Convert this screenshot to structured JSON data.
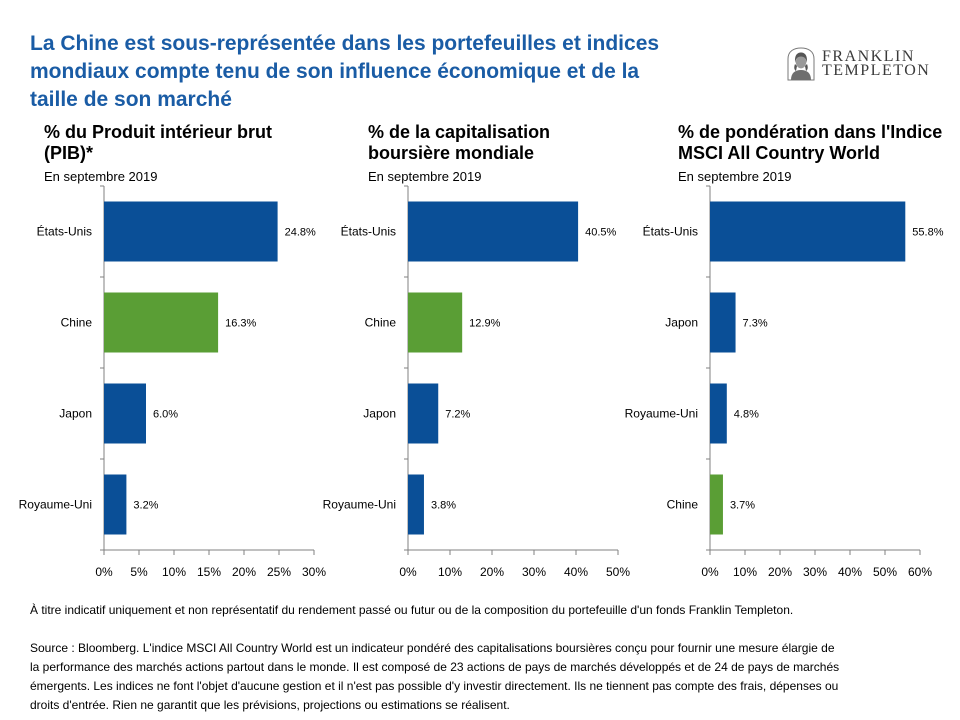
{
  "header": {
    "title_lines": [
      "La Chine est sous-représentée dans les portefeuilles et indices",
      "mondiaux compte tenu de son influence économique et de la",
      "taille de son marché"
    ]
  },
  "logo": {
    "line1": "FRANKLIN",
    "line2": "TEMPLETON",
    "icon": "franklin-portrait-icon"
  },
  "colors": {
    "title": "#1a5ca5",
    "bar": "#0a4f97",
    "highlight_bar": "#5a9e35",
    "axis": "#808080",
    "logo_text": "#3a3a3a"
  },
  "chart_data": [
    {
      "type": "bar",
      "orientation": "horizontal",
      "title_lines": [
        "% du Produit intérieur brut",
        "(PIB)*"
      ],
      "subtitle": "En septembre 2019",
      "categories": [
        "États-Unis",
        "Chine",
        "Japon",
        "Royaume-Uni"
      ],
      "values": [
        24.8,
        16.3,
        6.0,
        3.2
      ],
      "value_labels": [
        "24.8%",
        "16.3%",
        "6.0%",
        "3.2%"
      ],
      "bar_colors": [
        "#0a4f97",
        "#5a9e35",
        "#0a4f97",
        "#0a4f97"
      ],
      "xlim": [
        0,
        30
      ],
      "xticks": [
        0,
        5,
        10,
        15,
        20,
        25,
        30
      ],
      "xtick_labels": [
        "0%",
        "5%",
        "10%",
        "15%",
        "20%",
        "25%",
        "30%"
      ],
      "grid": false
    },
    {
      "type": "bar",
      "orientation": "horizontal",
      "title_lines": [
        "% de la capitalisation",
        "boursière mondiale"
      ],
      "subtitle": "En septembre 2019",
      "categories": [
        "États-Unis",
        "Chine",
        "Japon",
        "Royaume-Uni"
      ],
      "values": [
        40.5,
        12.9,
        7.2,
        3.8
      ],
      "value_labels": [
        "40.5%",
        "12.9%",
        "7.2%",
        "3.8%"
      ],
      "bar_colors": [
        "#0a4f97",
        "#5a9e35",
        "#0a4f97",
        "#0a4f97"
      ],
      "xlim": [
        0,
        50
      ],
      "xticks": [
        0,
        10,
        20,
        30,
        40,
        50
      ],
      "xtick_labels": [
        "0%",
        "10%",
        "20%",
        "30%",
        "40%",
        "50%"
      ],
      "grid": false
    },
    {
      "type": "bar",
      "orientation": "horizontal",
      "title_lines": [
        "% de pondération dans l'Indice",
        "MSCI All Country World"
      ],
      "subtitle": "En septembre 2019",
      "categories": [
        "États-Unis",
        "Japon",
        "Royaume-Uni",
        "Chine"
      ],
      "values": [
        55.8,
        7.3,
        4.8,
        3.7
      ],
      "value_labels": [
        "55.8%",
        "7.3%",
        "4.8%",
        "3.7%"
      ],
      "bar_colors": [
        "#0a4f97",
        "#0a4f97",
        "#0a4f97",
        "#5a9e35"
      ],
      "xlim": [
        0,
        60
      ],
      "xticks": [
        0,
        10,
        20,
        30,
        40,
        50,
        60
      ],
      "xtick_labels": [
        "0%",
        "10%",
        "20%",
        "30%",
        "40%",
        "50%",
        "60%"
      ],
      "grid": false
    }
  ],
  "footer": {
    "disclaimer": "À titre indicatif uniquement et non représentatif du rendement passé ou futur ou de la composition du portefeuille d'un fonds Franklin Templeton.",
    "source_lines": [
      "Source : Bloomberg. L'indice MSCI All Country World est un indicateur pondéré des capitalisations boursières conçu pour fournir une mesure élargie de",
      "la performance des marchés actions partout dans le monde. Il est composé de 23 actions de pays de marchés développés et de 24 de pays de marchés",
      "émergents. Les indices ne font l'objet d'aucune gestion et il n'est pas possible d'y investir directement. Ils ne tiennent pas compte des frais, dépenses ou",
      "droits d'entrée. Rien ne garantit que les prévisions, projections ou estimations se réalisent."
    ]
  }
}
